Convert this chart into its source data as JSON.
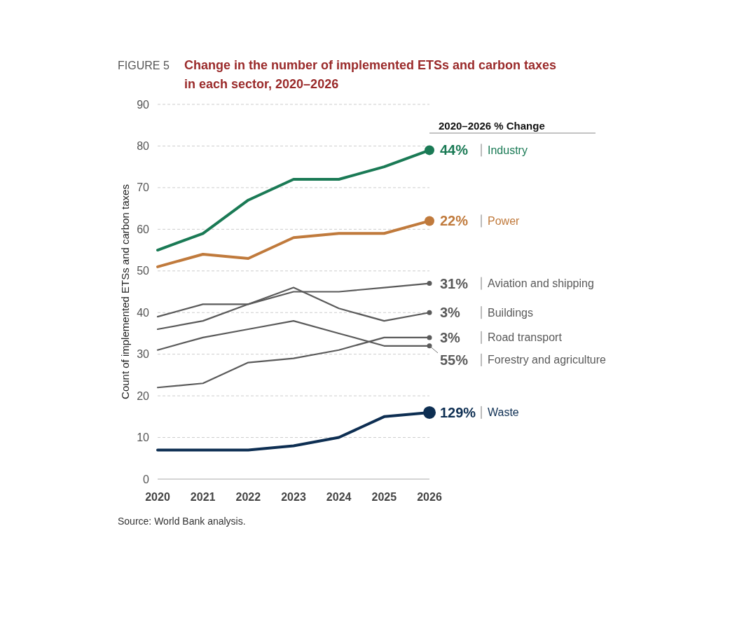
{
  "chart_data": {
    "type": "line",
    "title": "Change in the number of implemented ETSs and carbon taxes in each sector, 2020–2026",
    "ylabel": "Count of implemented ETSs and carbon taxes",
    "categories": [
      "2020",
      "2021",
      "2022",
      "2023",
      "2024",
      "2025",
      "2026"
    ],
    "series": [
      {
        "name": "Industry",
        "color": "#1a7a55",
        "values": [
          55,
          59,
          67,
          72,
          72,
          75,
          79
        ]
      },
      {
        "name": "Power",
        "color": "#c07a3c",
        "values": [
          51,
          54,
          53,
          58,
          59,
          59,
          62
        ]
      },
      {
        "name": "Aviation and shipping",
        "color": "#5a5a5a",
        "values": [
          36,
          38,
          42,
          45,
          45,
          46,
          47
        ]
      },
      {
        "name": "Buildings",
        "color": "#5a5a5a",
        "values": [
          39,
          42,
          42,
          46,
          41,
          38,
          40
        ]
      },
      {
        "name": "Road transport",
        "color": "#5a5a5a",
        "values": [
          22,
          23,
          28,
          29,
          31,
          34,
          34
        ]
      },
      {
        "name": "Forestry and agriculture",
        "color": "#5a5a5a",
        "values": [
          31,
          34,
          36,
          38,
          35,
          32,
          32
        ]
      },
      {
        "name": "Waste",
        "color": "#0d2e52",
        "values": [
          7,
          7,
          7,
          8,
          10,
          15,
          16
        ]
      }
    ],
    "ylim": [
      0,
      90
    ],
    "yticks": [
      0,
      10,
      20,
      30,
      40,
      50,
      60,
      70,
      80,
      90
    ],
    "grid": "y",
    "annotations": [
      "FIGURE 5",
      "2020–2026 % Change",
      "Source: World Bank analysis.",
      {
        "text": "44%",
        "x": "2026",
        "y": 79
      },
      {
        "text": "22%",
        "x": "2026",
        "y": 62
      },
      {
        "text": "31%",
        "x": "2026",
        "y": 47
      },
      {
        "text": "3%",
        "x": "2026",
        "y": 40
      },
      {
        "text": "3%",
        "x": "2026",
        "y": 34
      },
      {
        "text": "55%",
        "x": "2026",
        "y": 32
      },
      {
        "text": "129%",
        "x": "2026",
        "y": 16
      }
    ]
  }
}
